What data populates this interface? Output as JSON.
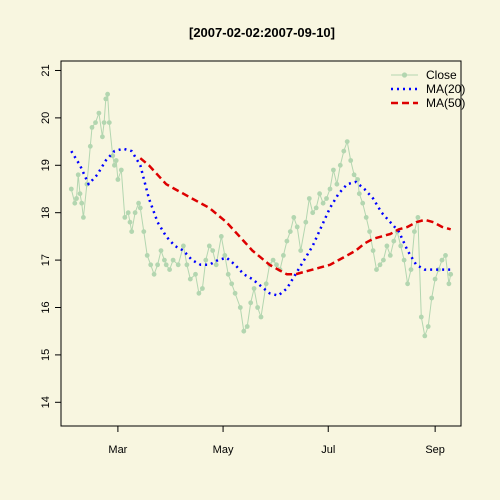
{
  "chart_data": {
    "type": "line",
    "title": "[2007-02-02:2007-09-10]",
    "xlabel": "",
    "ylabel": "",
    "xlim": [
      "2007-01-27",
      "2007-09-16"
    ],
    "ylim": [
      13.5,
      21.2
    ],
    "x_ticks": [
      {
        "date": "2007-03-01",
        "label": "Mar"
      },
      {
        "date": "2007-05-01",
        "label": "May"
      },
      {
        "date": "2007-07-01",
        "label": "Jul"
      },
      {
        "date": "2007-09-01",
        "label": "Sep"
      }
    ],
    "y_ticks": [
      14,
      15,
      16,
      17,
      18,
      19,
      20,
      21
    ],
    "legend_position": "top-right",
    "background_color": "#f8f6e0",
    "series": [
      {
        "name": "Close",
        "style": "line-points",
        "color": "#b3d6b0",
        "x": [
          "2007-02-02",
          "2007-02-04",
          "2007-02-05",
          "2007-02-06",
          "2007-02-07",
          "2007-02-08",
          "2007-02-09",
          "2007-02-11",
          "2007-02-13",
          "2007-02-14",
          "2007-02-16",
          "2007-02-18",
          "2007-02-20",
          "2007-02-21",
          "2007-02-22",
          "2007-02-23",
          "2007-02-24",
          "2007-02-26",
          "2007-02-27",
          "2007-02-28",
          "2007-03-01",
          "2007-03-03",
          "2007-03-05",
          "2007-03-07",
          "2007-03-08",
          "2007-03-09",
          "2007-03-11",
          "2007-03-13",
          "2007-03-14",
          "2007-03-16",
          "2007-03-18",
          "2007-03-20",
          "2007-03-22",
          "2007-03-24",
          "2007-03-26",
          "2007-03-28",
          "2007-03-29",
          "2007-03-31",
          "2007-04-02",
          "2007-04-05",
          "2007-04-08",
          "2007-04-10",
          "2007-04-12",
          "2007-04-15",
          "2007-04-17",
          "2007-04-19",
          "2007-04-21",
          "2007-04-23",
          "2007-04-25",
          "2007-04-27",
          "2007-04-30",
          "2007-05-02",
          "2007-05-04",
          "2007-05-06",
          "2007-05-08",
          "2007-05-11",
          "2007-05-13",
          "2007-05-15",
          "2007-05-17",
          "2007-05-19",
          "2007-05-21",
          "2007-05-23",
          "2007-05-26",
          "2007-05-28",
          "2007-05-30",
          "2007-06-01",
          "2007-06-03",
          "2007-06-05",
          "2007-06-07",
          "2007-06-09",
          "2007-06-11",
          "2007-06-13",
          "2007-06-15",
          "2007-06-18",
          "2007-06-20",
          "2007-06-22",
          "2007-06-24",
          "2007-06-26",
          "2007-06-28",
          "2007-06-30",
          "2007-07-02",
          "2007-07-04",
          "2007-07-06",
          "2007-07-08",
          "2007-07-10",
          "2007-07-12",
          "2007-07-14",
          "2007-07-16",
          "2007-07-18",
          "2007-07-19",
          "2007-07-21",
          "2007-07-23",
          "2007-07-25",
          "2007-07-27",
          "2007-07-29",
          "2007-07-31",
          "2007-08-02",
          "2007-08-04",
          "2007-08-06",
          "2007-08-08",
          "2007-08-10",
          "2007-08-12",
          "2007-08-14",
          "2007-08-16",
          "2007-08-18",
          "2007-08-20",
          "2007-08-22",
          "2007-08-24",
          "2007-08-26",
          "2007-08-28",
          "2007-08-30",
          "2007-09-01",
          "2007-09-03",
          "2007-09-05",
          "2007-09-07",
          "2007-09-09",
          "2007-09-10"
        ],
        "y": [
          18.5,
          18.2,
          18.3,
          18.8,
          18.4,
          18.2,
          17.9,
          18.6,
          19.4,
          19.8,
          19.9,
          20.1,
          19.6,
          19.9,
          20.4,
          20.5,
          19.9,
          19.2,
          19.0,
          19.1,
          18.7,
          18.9,
          17.9,
          18.0,
          17.8,
          17.6,
          18.0,
          18.2,
          18.1,
          17.6,
          17.1,
          16.9,
          16.7,
          16.9,
          17.2,
          17.0,
          16.9,
          16.8,
          17.0,
          16.9,
          17.3,
          16.9,
          16.6,
          16.7,
          16.3,
          16.4,
          17.0,
          17.3,
          17.2,
          16.9,
          17.5,
          17.1,
          16.7,
          16.5,
          16.3,
          16.0,
          15.5,
          15.6,
          16.1,
          16.4,
          16.0,
          15.8,
          16.5,
          16.9,
          17.0,
          16.9,
          16.8,
          17.1,
          17.4,
          17.6,
          17.9,
          17.7,
          17.2,
          17.8,
          18.3,
          18.0,
          18.1,
          18.4,
          18.2,
          18.3,
          18.5,
          18.9,
          18.6,
          19.0,
          19.3,
          19.5,
          19.1,
          18.8,
          18.7,
          18.4,
          18.2,
          17.9,
          17.6,
          17.2,
          16.8,
          16.9,
          17.0,
          17.3,
          17.1,
          17.4,
          17.6,
          17.3,
          17.0,
          16.5,
          16.8,
          17.6,
          17.9,
          15.8,
          15.4,
          15.6,
          16.2,
          16.6,
          16.8,
          17.0,
          17.1,
          16.5,
          16.7
        ]
      },
      {
        "name": "MA(20)",
        "style": "dotted",
        "color": "#0000ff",
        "x": [
          "2007-02-02",
          "2007-02-07",
          "2007-02-12",
          "2007-02-17",
          "2007-02-22",
          "2007-02-27",
          "2007-03-04",
          "2007-03-09",
          "2007-03-14",
          "2007-03-19",
          "2007-03-24",
          "2007-03-29",
          "2007-04-03",
          "2007-04-08",
          "2007-04-13",
          "2007-04-18",
          "2007-04-23",
          "2007-04-28",
          "2007-05-03",
          "2007-05-08",
          "2007-05-13",
          "2007-05-18",
          "2007-05-23",
          "2007-05-28",
          "2007-06-02",
          "2007-06-07",
          "2007-06-12",
          "2007-06-17",
          "2007-06-22",
          "2007-06-27",
          "2007-07-02",
          "2007-07-07",
          "2007-07-12",
          "2007-07-17",
          "2007-07-22",
          "2007-07-27",
          "2007-08-01",
          "2007-08-06",
          "2007-08-11",
          "2007-08-16",
          "2007-08-21",
          "2007-08-26",
          "2007-08-31",
          "2007-09-05",
          "2007-09-10"
        ],
        "y": [
          19.3,
          19.0,
          18.6,
          18.8,
          19.1,
          19.3,
          19.35,
          19.3,
          19.0,
          18.3,
          17.8,
          17.5,
          17.3,
          17.2,
          17.0,
          16.9,
          16.9,
          17.0,
          17.05,
          16.9,
          16.7,
          16.6,
          16.45,
          16.3,
          16.25,
          16.4,
          16.7,
          17.0,
          17.3,
          17.7,
          18.1,
          18.4,
          18.6,
          18.65,
          18.5,
          18.3,
          18.0,
          17.8,
          17.6,
          17.2,
          16.9,
          16.8,
          16.8,
          16.8,
          16.8
        ]
      },
      {
        "name": "MA(50)",
        "style": "dashed",
        "color": "#dd0000",
        "x": [
          "2007-03-14",
          "2007-03-19",
          "2007-03-24",
          "2007-03-29",
          "2007-04-03",
          "2007-04-08",
          "2007-04-13",
          "2007-04-18",
          "2007-04-23",
          "2007-04-28",
          "2007-05-03",
          "2007-05-08",
          "2007-05-13",
          "2007-05-18",
          "2007-05-23",
          "2007-05-28",
          "2007-06-02",
          "2007-06-07",
          "2007-06-12",
          "2007-06-17",
          "2007-06-22",
          "2007-06-27",
          "2007-07-02",
          "2007-07-07",
          "2007-07-12",
          "2007-07-17",
          "2007-07-22",
          "2007-07-27",
          "2007-08-01",
          "2007-08-06",
          "2007-08-11",
          "2007-08-16",
          "2007-08-21",
          "2007-08-26",
          "2007-08-31",
          "2007-09-05",
          "2007-09-10"
        ],
        "y": [
          19.15,
          19.0,
          18.8,
          18.6,
          18.5,
          18.4,
          18.3,
          18.2,
          18.1,
          17.95,
          17.8,
          17.6,
          17.4,
          17.2,
          17.05,
          16.9,
          16.8,
          16.7,
          16.7,
          16.75,
          16.8,
          16.85,
          16.9,
          17.0,
          17.1,
          17.2,
          17.35,
          17.45,
          17.5,
          17.55,
          17.65,
          17.7,
          17.8,
          17.85,
          17.8,
          17.7,
          17.65
        ]
      }
    ]
  }
}
